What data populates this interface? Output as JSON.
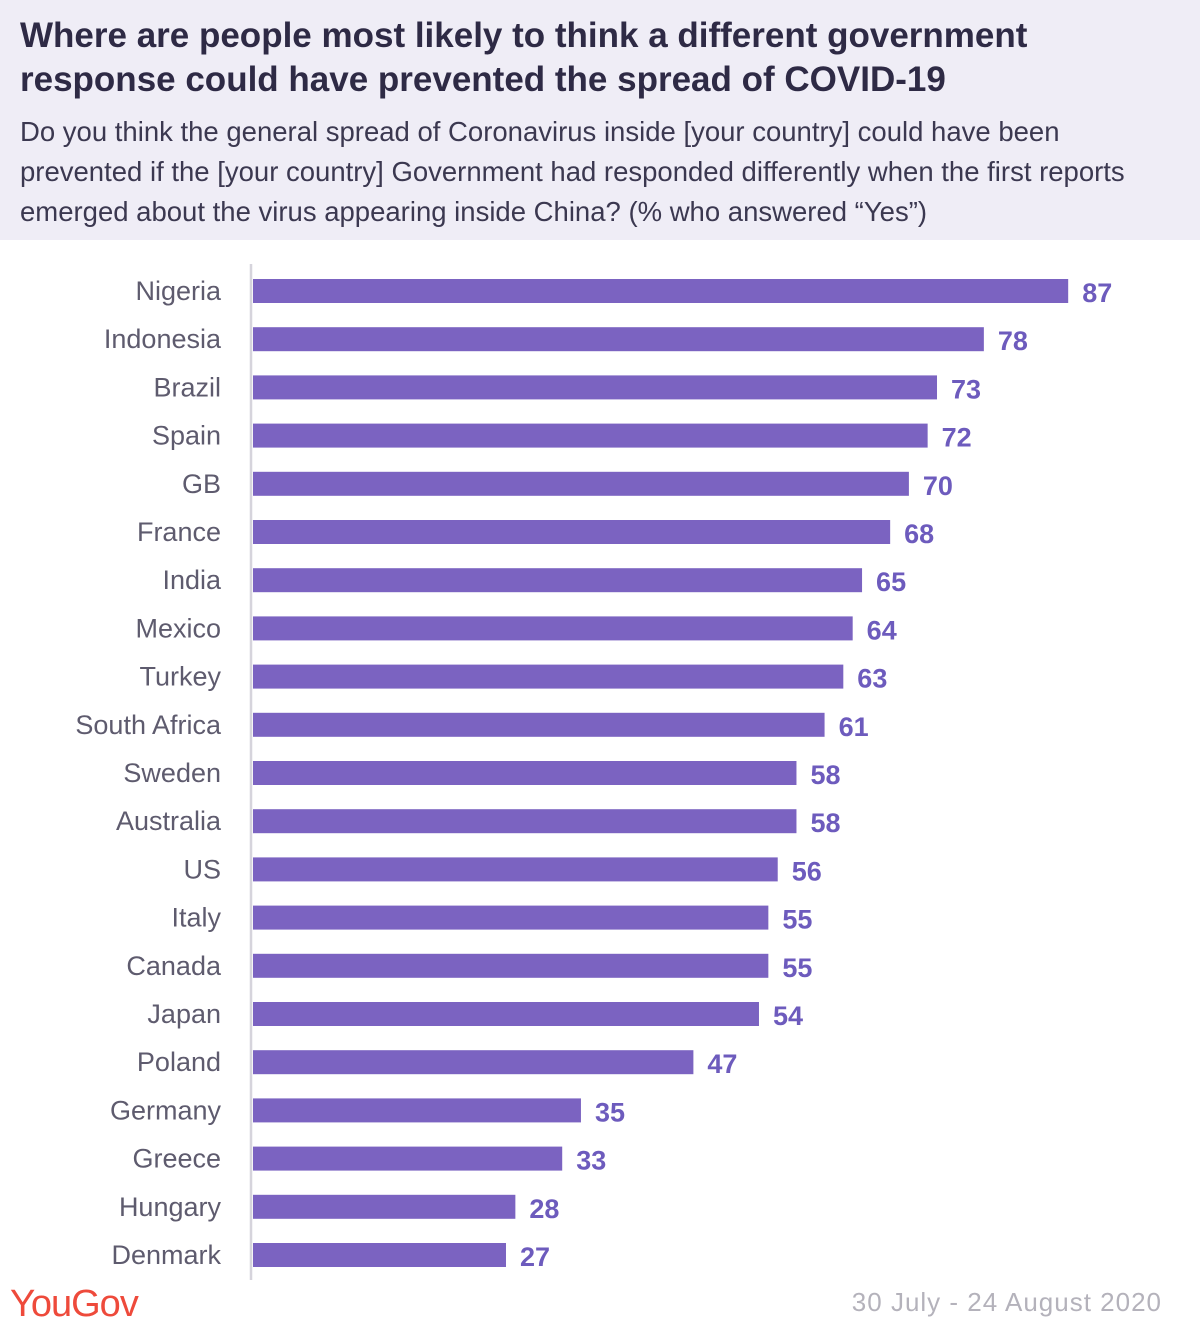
{
  "header": {
    "title": "Where are people most likely to think a different government response could have prevented the spread of COVID-19",
    "subtitle": "Do you think the general spread of Coronavirus inside [your country] could have been prevented if the [your country] Government had responded differently when the first reports emerged about the virus appearing inside China? (% who answered “Yes”)"
  },
  "footer": {
    "brand": "YouGov",
    "date_range": "30 July - 24 August 2020"
  },
  "colors": {
    "bar": "#7b63c1",
    "value_label": "#6d5bbd",
    "header_bg": "#efedf6",
    "brand": "#ee4a3b"
  },
  "chart_data": {
    "type": "bar",
    "orientation": "horizontal",
    "categories": [
      "Nigeria",
      "Indonesia",
      "Brazil",
      "Spain",
      "GB",
      "France",
      "India",
      "Mexico",
      "Turkey",
      "South Africa",
      "Sweden",
      "Australia",
      "US",
      "Italy",
      "Canada",
      "Japan",
      "Poland",
      "Germany",
      "Greece",
      "Hungary",
      "Denmark"
    ],
    "values": [
      87,
      78,
      73,
      72,
      70,
      68,
      65,
      64,
      63,
      61,
      58,
      58,
      56,
      55,
      55,
      54,
      47,
      35,
      33,
      28,
      27
    ],
    "unit": "%",
    "xlim": [
      0,
      100
    ],
    "grid": false,
    "legend": "none"
  }
}
